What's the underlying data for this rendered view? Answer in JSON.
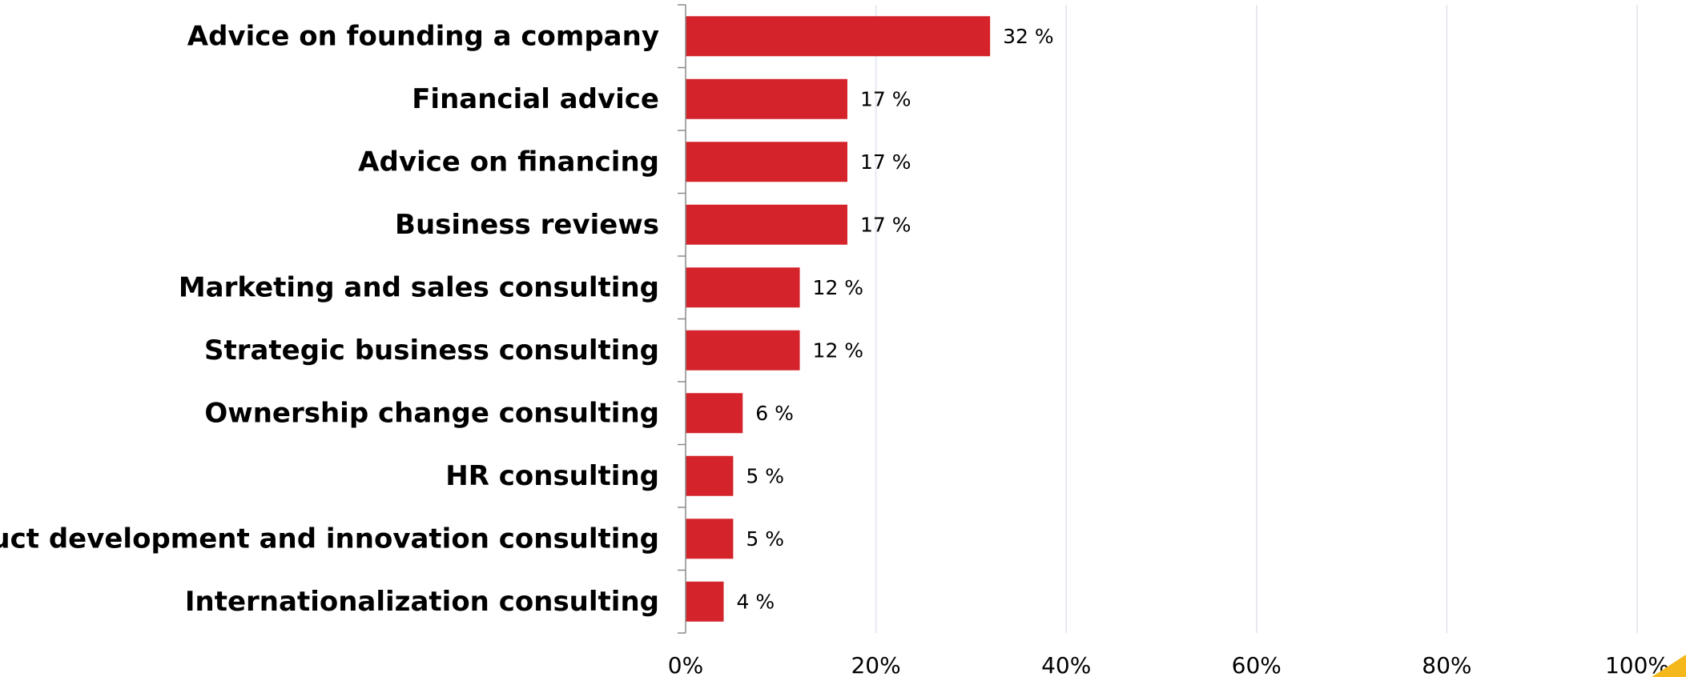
{
  "chart_data": {
    "type": "bar",
    "orientation": "horizontal",
    "categories": [
      "Advice on founding a company",
      "Financial advice",
      "Advice on financing",
      "Business reviews",
      "Marketing and sales consulting",
      "Strategic business consulting",
      "Ownership change consulting",
      "HR consulting",
      "Product development and innovation consulting",
      "Internationalization consulting"
    ],
    "values": [
      32,
      17,
      17,
      17,
      12,
      12,
      6,
      5,
      5,
      4
    ],
    "value_labels": [
      "32 %",
      "17 %",
      "17 %",
      "17 %",
      "12 %",
      "12 %",
      "6 %",
      "5 %",
      "5 %",
      "4 %"
    ],
    "xlim": [
      0,
      100
    ],
    "xticks": [
      0,
      20,
      40,
      60,
      80,
      100
    ],
    "xtick_labels": [
      "0%",
      "20%",
      "40%",
      "60%",
      "80%",
      "100%"
    ],
    "grid": true,
    "title": "",
    "xlabel": "",
    "ylabel": "",
    "bar_color": "#d4232b",
    "corner_accent_color": "#f5b81c"
  }
}
